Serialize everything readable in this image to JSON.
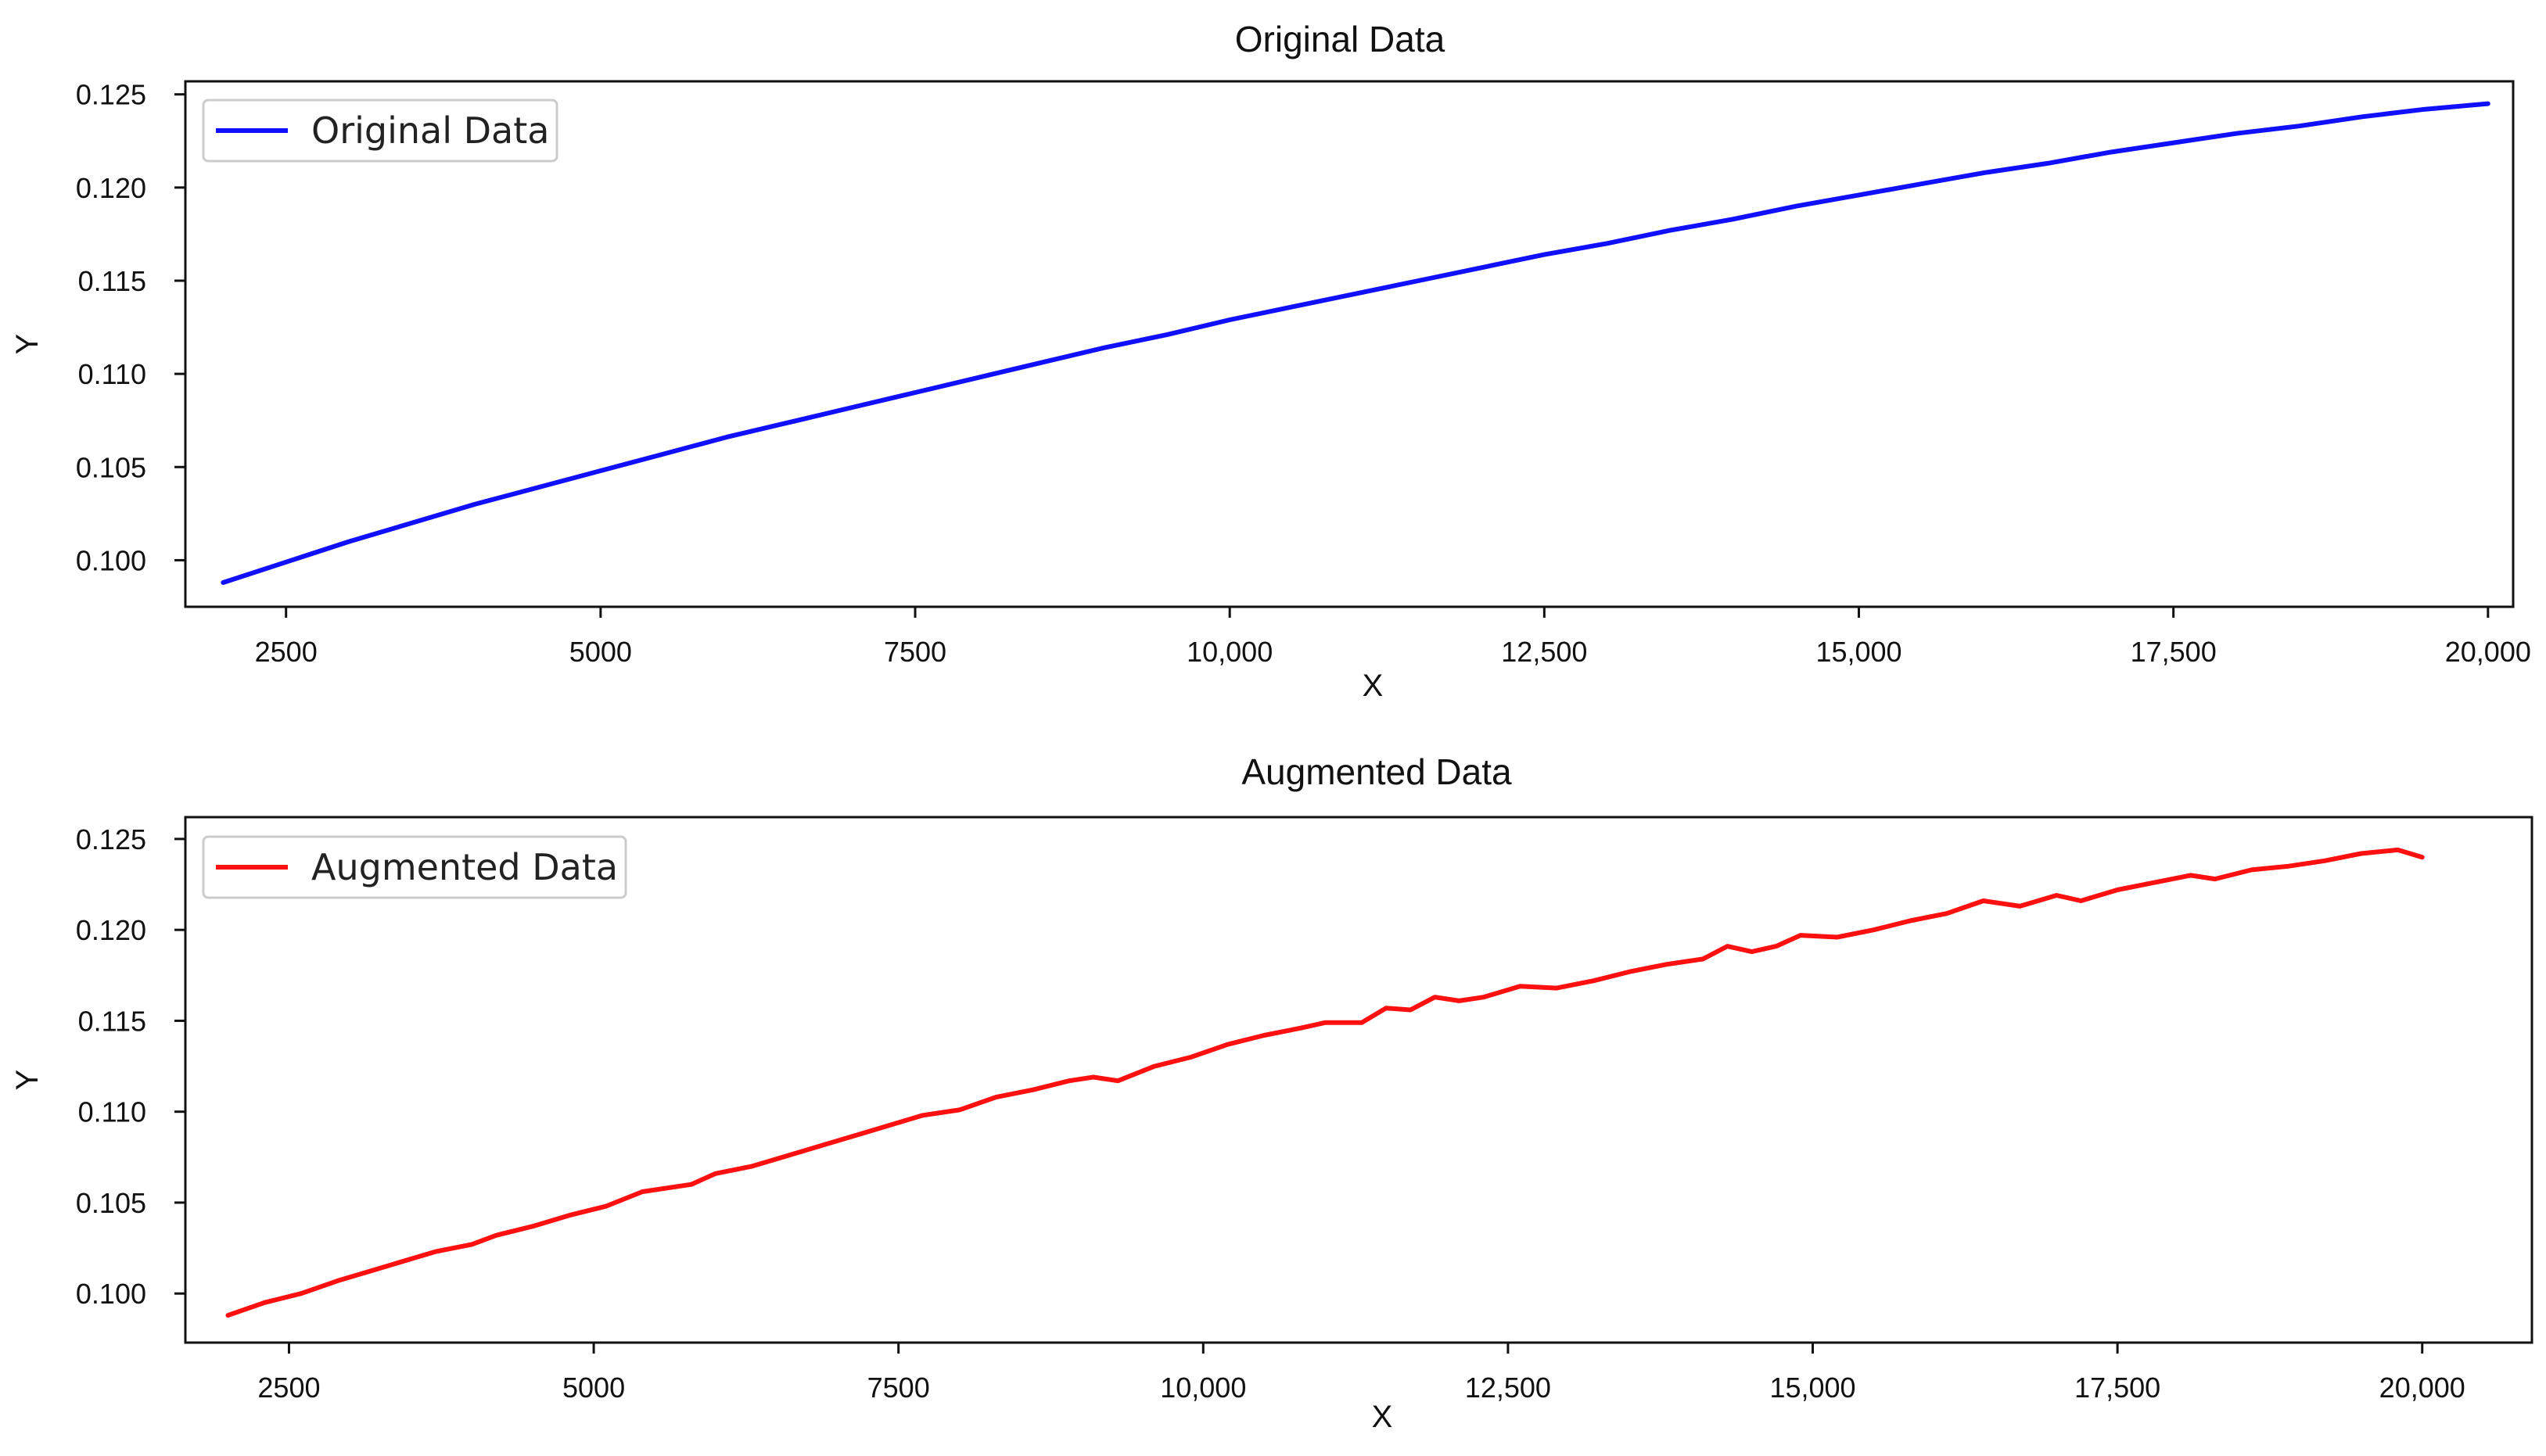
{
  "chart_data": [
    {
      "type": "line",
      "title": "Original  Data",
      "xlabel": "X",
      "ylabel": "Y",
      "xlim": [
        1700,
        20200
      ],
      "ylim": [
        0.0975,
        0.1257
      ],
      "x_ticks": [
        2500,
        5000,
        7500,
        10000,
        12500,
        15000,
        17500,
        20000
      ],
      "x_tick_labels": [
        "2500",
        "5000",
        "7500",
        "10,000",
        "12,500",
        "15,000",
        "17,500",
        "20,000"
      ],
      "y_ticks": [
        0.1,
        0.105,
        0.11,
        0.115,
        0.12,
        0.125
      ],
      "y_tick_labels": [
        "0.100",
        "0.105",
        "0.110",
        "0.115",
        "0.120",
        "0.125"
      ],
      "grid": false,
      "legend_position": "top-left",
      "series": [
        {
          "name": "Original Data",
          "color": "#1010ff",
          "x": [
            2000,
            2500,
            3000,
            3500,
            4000,
            4500,
            5000,
            5500,
            6000,
            6500,
            7000,
            7500,
            8000,
            8500,
            9000,
            9500,
            10000,
            10500,
            11000,
            11500,
            12000,
            12500,
            13000,
            13500,
            14000,
            14500,
            15000,
            15500,
            16000,
            16500,
            17000,
            17500,
            18000,
            18500,
            19000,
            19500,
            20000
          ],
          "y": [
            0.0988,
            0.0999,
            0.101,
            0.102,
            0.103,
            0.1039,
            0.1048,
            0.1057,
            0.1066,
            0.1074,
            0.1082,
            0.109,
            0.1098,
            0.1106,
            0.1114,
            0.1121,
            0.1129,
            0.1136,
            0.1143,
            0.115,
            0.1157,
            0.1164,
            0.117,
            0.1177,
            0.1183,
            0.119,
            0.1196,
            0.1202,
            0.1208,
            0.1213,
            0.1219,
            0.1224,
            0.1229,
            0.1233,
            0.1238,
            0.1242,
            0.1245
          ]
        }
      ]
    },
    {
      "type": "line",
      "title": "Augmented  Data",
      "xlabel": "X",
      "ylabel": "Y",
      "xlim": [
        1650,
        20900
      ],
      "ylim": [
        0.0973,
        0.1262
      ],
      "x_ticks": [
        2500,
        5000,
        7500,
        10000,
        12500,
        15000,
        17500,
        20000
      ],
      "x_tick_labels": [
        "2500",
        "5000",
        "7500",
        "10,000",
        "12,500",
        "15,000",
        "17,500",
        "20,000"
      ],
      "y_ticks": [
        0.1,
        0.105,
        0.11,
        0.115,
        0.12,
        0.125
      ],
      "y_tick_labels": [
        "0.100",
        "0.105",
        "0.110",
        "0.115",
        "0.120",
        "0.125"
      ],
      "grid": false,
      "legend_position": "top-left",
      "series": [
        {
          "name": "Augmented Data",
          "color": "#ff1010",
          "x": [
            2000,
            2300,
            2600,
            2900,
            3200,
            3500,
            3700,
            4000,
            4200,
            4500,
            4800,
            5100,
            5400,
            5800,
            6000,
            6300,
            6600,
            6900,
            7200,
            7500,
            7700,
            8000,
            8300,
            8600,
            8900,
            9100,
            9300,
            9600,
            9900,
            10200,
            10500,
            10800,
            11000,
            11300,
            11500,
            11700,
            11900,
            12100,
            12300,
            12600,
            12900,
            13200,
            13500,
            13800,
            14100,
            14300,
            14500,
            14700,
            14900,
            15200,
            15500,
            15800,
            16100,
            16400,
            16700,
            17000,
            17200,
            17500,
            17800,
            18100,
            18300,
            18600,
            18900,
            19200,
            19500,
            19800,
            20000
          ],
          "y": [
            0.0988,
            0.0995,
            0.1,
            0.1007,
            0.1013,
            0.1019,
            0.1023,
            0.1027,
            0.1032,
            0.1037,
            0.1043,
            0.1048,
            0.1056,
            0.106,
            0.1066,
            0.107,
            0.1076,
            0.1082,
            0.1088,
            0.1094,
            0.1098,
            0.1101,
            0.1108,
            0.1112,
            0.1117,
            0.1119,
            0.1117,
            0.1125,
            0.113,
            0.1137,
            0.1142,
            0.1146,
            0.1149,
            0.1149,
            0.1157,
            0.1156,
            0.1163,
            0.1161,
            0.1163,
            0.1169,
            0.1168,
            0.1172,
            0.1177,
            0.1181,
            0.1184,
            0.1191,
            0.1188,
            0.1191,
            0.1197,
            0.1196,
            0.12,
            0.1205,
            0.1209,
            0.1216,
            0.1213,
            0.1219,
            0.1216,
            0.1222,
            0.1226,
            0.123,
            0.1228,
            0.1233,
            0.1235,
            0.1238,
            0.1242,
            0.1244,
            0.124
          ]
        }
      ]
    }
  ]
}
